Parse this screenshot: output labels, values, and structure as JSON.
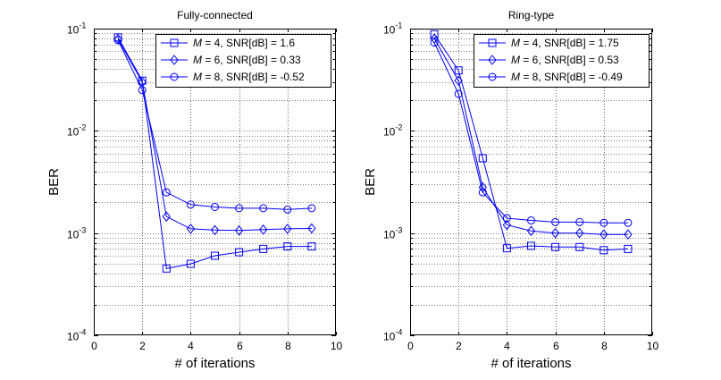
{
  "figure": {
    "background": "#ffffff"
  },
  "chart_data": [
    {
      "type": "line",
      "title": "Fully-connected",
      "xlabel": "# of iterations",
      "ylabel": "BER",
      "xscale": "linear",
      "yscale": "log",
      "xlim": [
        0,
        10
      ],
      "ylim": [
        0.0001,
        0.1
      ],
      "xticks": [
        0,
        2,
        4,
        6,
        8,
        10
      ],
      "yticks": [
        {
          "base": "10",
          "exp": "-4"
        },
        {
          "base": "10",
          "exp": "-3"
        },
        {
          "base": "10",
          "exp": "-2"
        },
        {
          "base": "10",
          "exp": "-1"
        }
      ],
      "grid": true,
      "legend_location": "top-right",
      "series": [
        {
          "name_var": "M",
          "name_rest": " = 4, SNR[dB] = 1.6",
          "marker": "square",
          "color": "#0000ff",
          "x": [
            1,
            2,
            3,
            4,
            5,
            6,
            7,
            8,
            9
          ],
          "values": [
            0.082,
            0.031,
            0.00045,
            0.0005,
            0.0006,
            0.00065,
            0.0007,
            0.00074,
            0.00074
          ]
        },
        {
          "name_var": "M",
          "name_rest": " = 6, SNR[dB] = 0.33",
          "marker": "diamond",
          "color": "#0000ff",
          "x": [
            1,
            2,
            3,
            4,
            5,
            6,
            7,
            8,
            9
          ],
          "values": [
            0.079,
            0.03,
            0.00145,
            0.0011,
            0.00107,
            0.00106,
            0.00108,
            0.0011,
            0.00111
          ]
        },
        {
          "name_var": "M",
          "name_rest": " = 8, SNR[dB] = -0.52",
          "marker": "circle",
          "color": "#0000ff",
          "x": [
            1,
            2,
            3,
            4,
            5,
            6,
            7,
            8,
            9
          ],
          "values": [
            0.077,
            0.025,
            0.0025,
            0.0019,
            0.0018,
            0.00175,
            0.00175,
            0.0017,
            0.00175
          ]
        }
      ]
    },
    {
      "type": "line",
      "title": "Ring-type",
      "xlabel": "# of iterations",
      "ylabel": "BER",
      "xscale": "linear",
      "yscale": "log",
      "xlim": [
        0,
        10
      ],
      "ylim": [
        0.0001,
        0.1
      ],
      "xticks": [
        0,
        2,
        4,
        6,
        8,
        10
      ],
      "yticks": [
        {
          "base": "10",
          "exp": "-4"
        },
        {
          "base": "10",
          "exp": "-3"
        },
        {
          "base": "10",
          "exp": "-2"
        },
        {
          "base": "10",
          "exp": "-1"
        }
      ],
      "grid": true,
      "legend_location": "top-right",
      "series": [
        {
          "name_var": "M",
          "name_rest": " = 4, SNR[dB] = 1.75",
          "marker": "square",
          "color": "#0000ff",
          "x": [
            1,
            2,
            3,
            4,
            5,
            6,
            7,
            8,
            9
          ],
          "values": [
            0.088,
            0.039,
            0.0054,
            0.00071,
            0.00075,
            0.00073,
            0.00073,
            0.00068,
            0.0007
          ]
        },
        {
          "name_var": "M",
          "name_rest": " = 6, SNR[dB] = 0.53",
          "marker": "diamond",
          "color": "#0000ff",
          "x": [
            1,
            2,
            3,
            4,
            5,
            6,
            7,
            8,
            9
          ],
          "values": [
            0.08,
            0.031,
            0.0028,
            0.0012,
            0.00105,
            0.001,
            0.001,
            0.00097,
            0.00097
          ]
        },
        {
          "name_var": "M",
          "name_rest": " = 8, SNR[dB] = -0.49",
          "marker": "circle",
          "color": "#0000ff",
          "x": [
            1,
            2,
            3,
            4,
            5,
            6,
            7,
            8,
            9
          ],
          "values": [
            0.073,
            0.023,
            0.0025,
            0.0014,
            0.00133,
            0.00128,
            0.00128,
            0.00126,
            0.00126
          ]
        }
      ]
    }
  ]
}
